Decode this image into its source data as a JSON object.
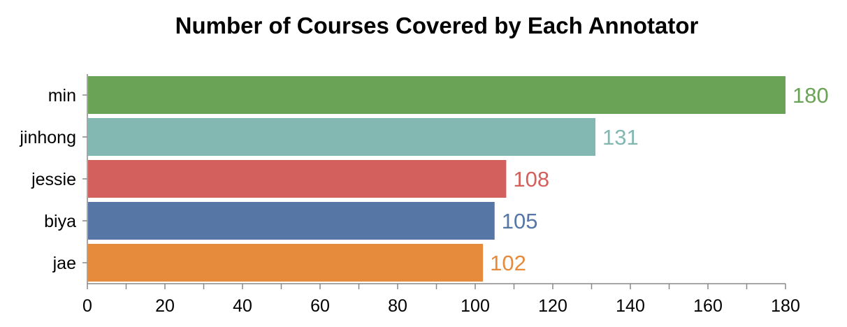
{
  "chart_data": {
    "type": "bar",
    "orientation": "horizontal",
    "title": "Number of Courses Covered by Each Annotator",
    "xlabel": "",
    "ylabel": "",
    "categories": [
      "min",
      "jinhong",
      "jessie",
      "biya",
      "jae"
    ],
    "values": [
      180,
      131,
      108,
      105,
      102
    ],
    "colors": [
      "#6aa356",
      "#83b7b1",
      "#d4605d",
      "#5677a5",
      "#e68a3b"
    ],
    "xlim": [
      0,
      180
    ],
    "x_ticks": [
      0,
      20,
      40,
      60,
      80,
      100,
      120,
      140,
      160,
      180
    ],
    "grid": false,
    "data_labels": true
  }
}
